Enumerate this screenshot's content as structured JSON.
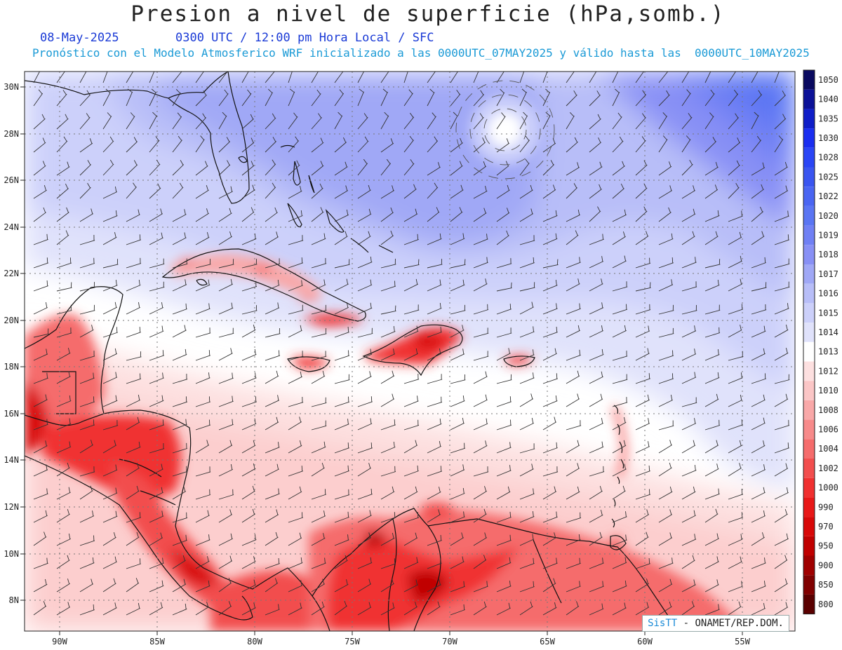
{
  "header": {
    "title": "Presion a nivel de superficie (hPa,somb.)",
    "date": "08-May-2025",
    "time_info": "0300 UTC / 12:00 pm Hora Local / SFC",
    "forecast_info": "Pronóstico con el Modelo Atmosferico WRF inicializado a las 0000UTC_07MAY2025 y válido hasta las  0000UTC_10MAY2025"
  },
  "map": {
    "lat_labels": [
      "30N",
      "28N",
      "26N",
      "24N",
      "22N",
      "20N",
      "18N",
      "16N",
      "14N",
      "12N",
      "10N",
      "8N"
    ],
    "lon_labels": [
      "90W",
      "85W",
      "80W",
      "75W",
      "70W",
      "65W",
      "60W",
      "55W"
    ],
    "lat_range": [
      7,
      30.5
    ],
    "lon_range": [
      -92,
      -53.5
    ]
  },
  "colorbar": {
    "levels": [
      "1050",
      "1040",
      "1035",
      "1030",
      "1028",
      "1025",
      "1022",
      "1020",
      "1019",
      "1018",
      "1017",
      "1016",
      "1015",
      "1014",
      "1013",
      "1012",
      "1010",
      "1008",
      "1006",
      "1004",
      "1002",
      "1000",
      "990",
      "970",
      "950",
      "900",
      "850",
      "800"
    ],
    "colors": [
      "#0a0a60",
      "#0c1298",
      "#0f1ec8",
      "#1a2ef0",
      "#2a45f5",
      "#3a55f0",
      "#4a65f2",
      "#5a75f3",
      "#7080f4",
      "#8890f5",
      "#a0a8f6",
      "#b8bef8",
      "#ccd0fa",
      "#e0e2fb",
      "#ffffff",
      "#fde0e0",
      "#fbc6c6",
      "#f9a8a8",
      "#f78a8a",
      "#f56c6c",
      "#f24e4e",
      "#f03030",
      "#e81818",
      "#d80808",
      "#c00000",
      "#a00000",
      "#800000",
      "#5a0000"
    ]
  },
  "credit": {
    "brand": "SisTT",
    "org": " - ONAMET/REP.DOM."
  }
}
